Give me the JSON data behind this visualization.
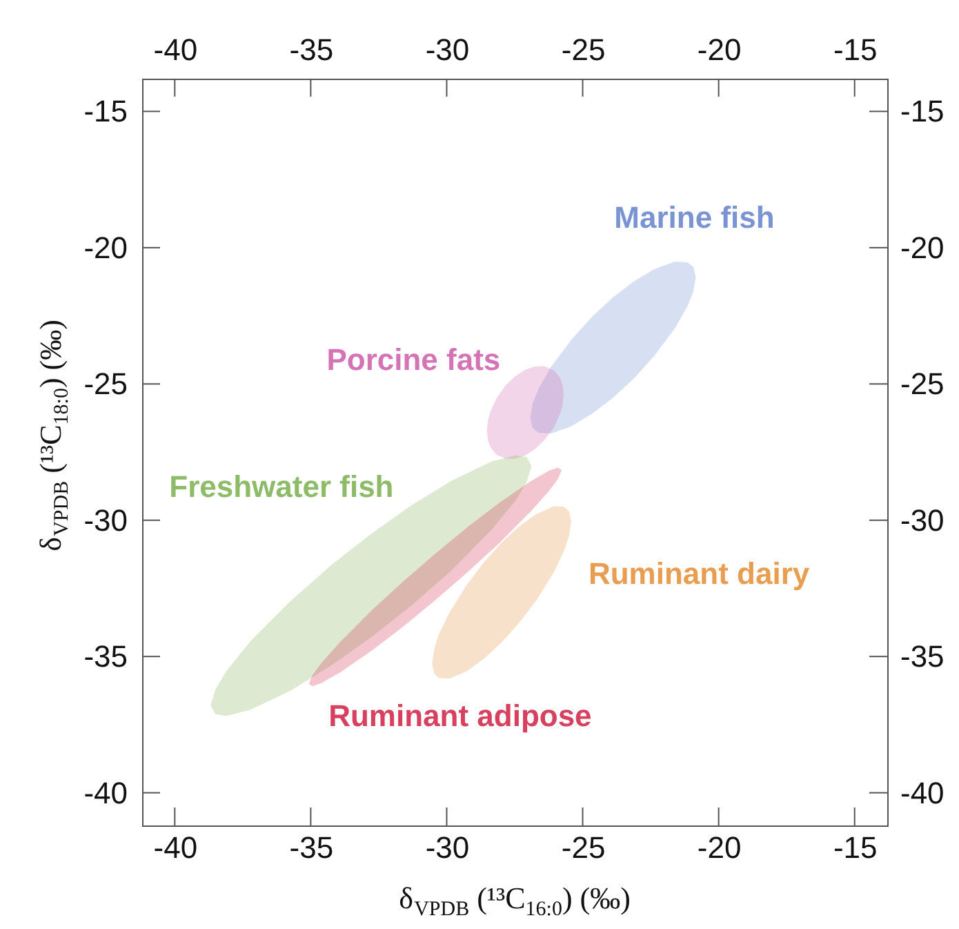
{
  "chart_data": {
    "type": "area",
    "xlabel": "δ$_{VPDB}$ (¹³C$_{16:0}$) (‰)",
    "ylabel": "δ$_{VPDB}$ (¹³C$_{18:0}$) (‰)",
    "xlim": [
      -41.2,
      -13.8
    ],
    "xticks": [
      -40,
      -35,
      -30,
      -25,
      -20,
      -15
    ],
    "ylim": [
      -41.2,
      -13.8
    ],
    "yticks": [
      -40,
      -35,
      -30,
      -25,
      -20,
      -15
    ],
    "x2lim": [
      -41.2,
      -13.8
    ],
    "x2ticks": [
      -40,
      -35,
      -30,
      -25,
      -20,
      -15
    ],
    "y2lim": [
      -41.2,
      -13.8
    ],
    "y2ticks": [
      -40,
      -35,
      -30,
      -25,
      -20,
      -15
    ],
    "series": [
      {
        "name": "Marine fish",
        "color": "#7a94d3",
        "x": [
          -26.93,
          -26.84,
          -26.63,
          -26.17,
          -25.41,
          -24.65,
          -23.89,
          -23.12,
          -22.36,
          -21.6,
          -21.14,
          -20.93,
          -20.84,
          -20.93,
          -21.14,
          -21.6,
          -22.36,
          -23.12,
          -23.89,
          -24.65,
          -25.41,
          -26.17,
          -26.63,
          -26.84
        ],
        "values": [
          -26.25,
          -25.72,
          -25.19,
          -24.38,
          -23.37,
          -22.53,
          -21.83,
          -21.24,
          -20.78,
          -20.51,
          -20.54,
          -20.71,
          -21.08,
          -21.61,
          -22.14,
          -22.95,
          -23.96,
          -24.8,
          -25.51,
          -26.09,
          -26.55,
          -26.82,
          -26.79,
          -26.62
        ]
      },
      {
        "name": "Porcine fats",
        "color": "#d474b6",
        "x": [
          -28.52,
          -28.48,
          -28.38,
          -28.17,
          -27.82,
          -27.46,
          -27.11,
          -26.76,
          -26.41,
          -26.05,
          -25.84,
          -25.74,
          -25.7,
          -25.74,
          -25.84,
          -26.05,
          -26.41,
          -26.76,
          -27.11,
          -27.46,
          -27.82,
          -28.17,
          -28.38,
          -28.48
        ],
        "values": [
          -26.72,
          -26.32,
          -25.98,
          -25.53,
          -25.03,
          -24.7,
          -24.48,
          -24.36,
          -24.35,
          -24.51,
          -24.76,
          -25.02,
          -25.38,
          -25.78,
          -26.12,
          -26.58,
          -27.07,
          -27.4,
          -27.62,
          -27.74,
          -27.75,
          -27.6,
          -27.34,
          -27.08
        ]
      },
      {
        "name": "Freshwater fish",
        "color": "#8dbb68",
        "x": [
          -38.68,
          -38.5,
          -38.09,
          -37.21,
          -35.73,
          -34.26,
          -32.78,
          -31.31,
          -29.83,
          -28.36,
          -27.47,
          -27.06,
          -26.88,
          -27.06,
          -27.47,
          -28.36,
          -29.83,
          -31.31,
          -32.78,
          -34.26,
          -35.73,
          -37.21,
          -38.09,
          -38.5
        ],
        "values": [
          -36.79,
          -36.2,
          -35.52,
          -34.43,
          -32.96,
          -31.66,
          -30.5,
          -29.46,
          -28.56,
          -27.85,
          -27.62,
          -27.68,
          -28.01,
          -28.6,
          -29.28,
          -30.36,
          -31.85,
          -33.14,
          -34.3,
          -35.34,
          -36.25,
          -36.95,
          -37.18,
          -37.12
        ]
      },
      {
        "name": "Ruminant dairy",
        "color": "#e89d50",
        "x": [
          -30.54,
          -30.46,
          -30.29,
          -29.9,
          -29.26,
          -28.62,
          -27.98,
          -27.34,
          -26.7,
          -26.06,
          -25.68,
          -25.5,
          -25.42,
          -25.5,
          -25.68,
          -26.06,
          -26.7,
          -27.34,
          -27.98,
          -28.62,
          -29.26,
          -29.9,
          -30.29,
          -30.46
        ],
        "values": [
          -35.26,
          -34.73,
          -34.19,
          -33.39,
          -32.37,
          -31.53,
          -30.82,
          -30.23,
          -29.77,
          -29.49,
          -29.51,
          -29.68,
          -30.05,
          -30.57,
          -31.11,
          -31.91,
          -32.94,
          -33.77,
          -34.48,
          -35.07,
          -35.54,
          -35.81,
          -35.79,
          -35.62
        ]
      },
      {
        "name": "Ruminant adipose",
        "color": "#d7405f",
        "x": [
          -35.07,
          -34.93,
          -34.61,
          -33.91,
          -32.75,
          -31.58,
          -30.42,
          -29.26,
          -28.09,
          -26.93,
          -26.23,
          -25.91,
          -25.77,
          -25.91,
          -26.23,
          -26.93,
          -28.09,
          -29.26,
          -30.42,
          -31.58,
          -32.75,
          -33.91,
          -34.61,
          -34.93
        ],
        "values": [
          -36.0,
          -35.67,
          -35.24,
          -34.46,
          -33.3,
          -32.23,
          -31.23,
          -30.27,
          -29.38,
          -28.58,
          -28.18,
          -28.07,
          -28.16,
          -28.49,
          -28.92,
          -29.7,
          -30.86,
          -31.93,
          -32.93,
          -33.89,
          -34.78,
          -35.58,
          -35.98,
          -36.09
        ]
      }
    ]
  }
}
